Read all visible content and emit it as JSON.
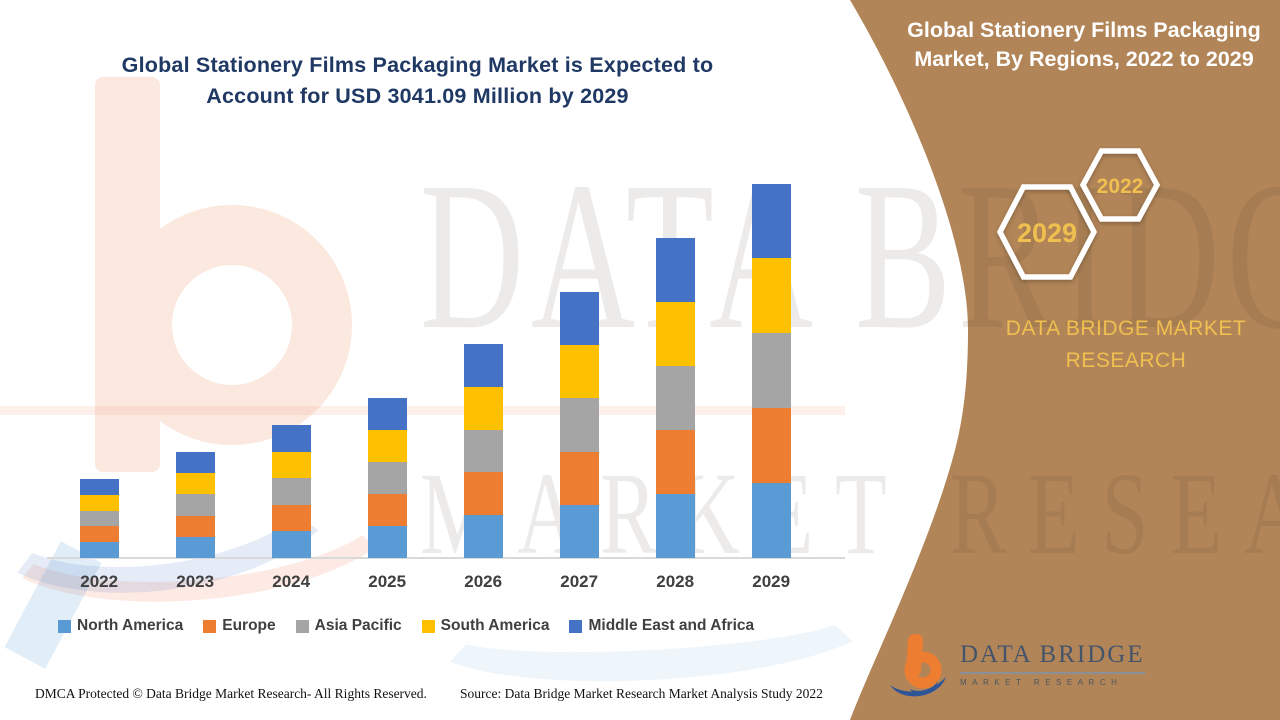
{
  "header": {
    "title_line1": "Global Stationery Films Packaging Market is Expected to",
    "title_line2": "Account for USD 3041.09 Million by 2029"
  },
  "side_panel": {
    "title_line1": "Global Stationery Films Packaging",
    "title_line2": "Market, By Regions, 2022 to 2029",
    "badges": [
      {
        "label": "2029"
      },
      {
        "label": "2022"
      }
    ],
    "brand_line1": "DATA BRIDGE MARKET",
    "brand_line2": "RESEARCH"
  },
  "chart_data": {
    "type": "bar",
    "stacked": true,
    "title": "Global Stationery Films Packaging Market, By Regions, 2022 to 2029",
    "unit": "USD Million",
    "categories": [
      "2022",
      "2023",
      "2024",
      "2025",
      "2026",
      "2027",
      "2028",
      "2029"
    ],
    "series": [
      {
        "name": "North America",
        "color": "#5B9BD5",
        "values": [
          128.2,
          172.2,
          216.0,
          259.8,
          347.4,
          432.0,
          519.6,
          608.2
        ]
      },
      {
        "name": "Europe",
        "color": "#ED7D31",
        "values": [
          128.2,
          172.2,
          216.0,
          259.8,
          347.4,
          432.0,
          519.6,
          608.2
        ]
      },
      {
        "name": "Asia Pacific",
        "color": "#A5A5A5",
        "values": [
          128.2,
          172.2,
          216.0,
          259.8,
          347.4,
          432.0,
          519.6,
          608.2
        ]
      },
      {
        "name": "South America",
        "color": "#FFC000",
        "values": [
          128.2,
          172.2,
          216.0,
          259.8,
          347.4,
          432.0,
          519.6,
          608.2
        ]
      },
      {
        "name": "Middle East and Africa",
        "color": "#4472C4",
        "values": [
          128.2,
          172.2,
          216.0,
          259.8,
          347.4,
          432.0,
          519.6,
          608.2
        ]
      }
    ],
    "totals": [
      641,
      861,
      1080,
      1299,
      1737,
      2160,
      2598,
      3041.09
    ],
    "ylim": [
      0,
      3100
    ],
    "grid": false,
    "axis_visible": false,
    "legend_position": "bottom",
    "values_estimated": true
  },
  "watermark": {
    "line1": "DATA BRIDGE",
    "line2": "MARKET RESEARCH"
  },
  "logo": {
    "brand": "DATA BRIDGE",
    "subtitle": "MARKET RESEARCH"
  },
  "footer": {
    "left": "DMCA Protected © Data Bridge Market Research- All Rights Reserved.",
    "right": "Source: Data Bridge Market Research Market Analysis Study 2022"
  },
  "colors": {
    "panel_brown": "#B28558",
    "accent_gold": "#EFBF4F",
    "title_navy": "#1F3864",
    "axis_line": "#D9D9D9",
    "label_gray": "#404040"
  }
}
